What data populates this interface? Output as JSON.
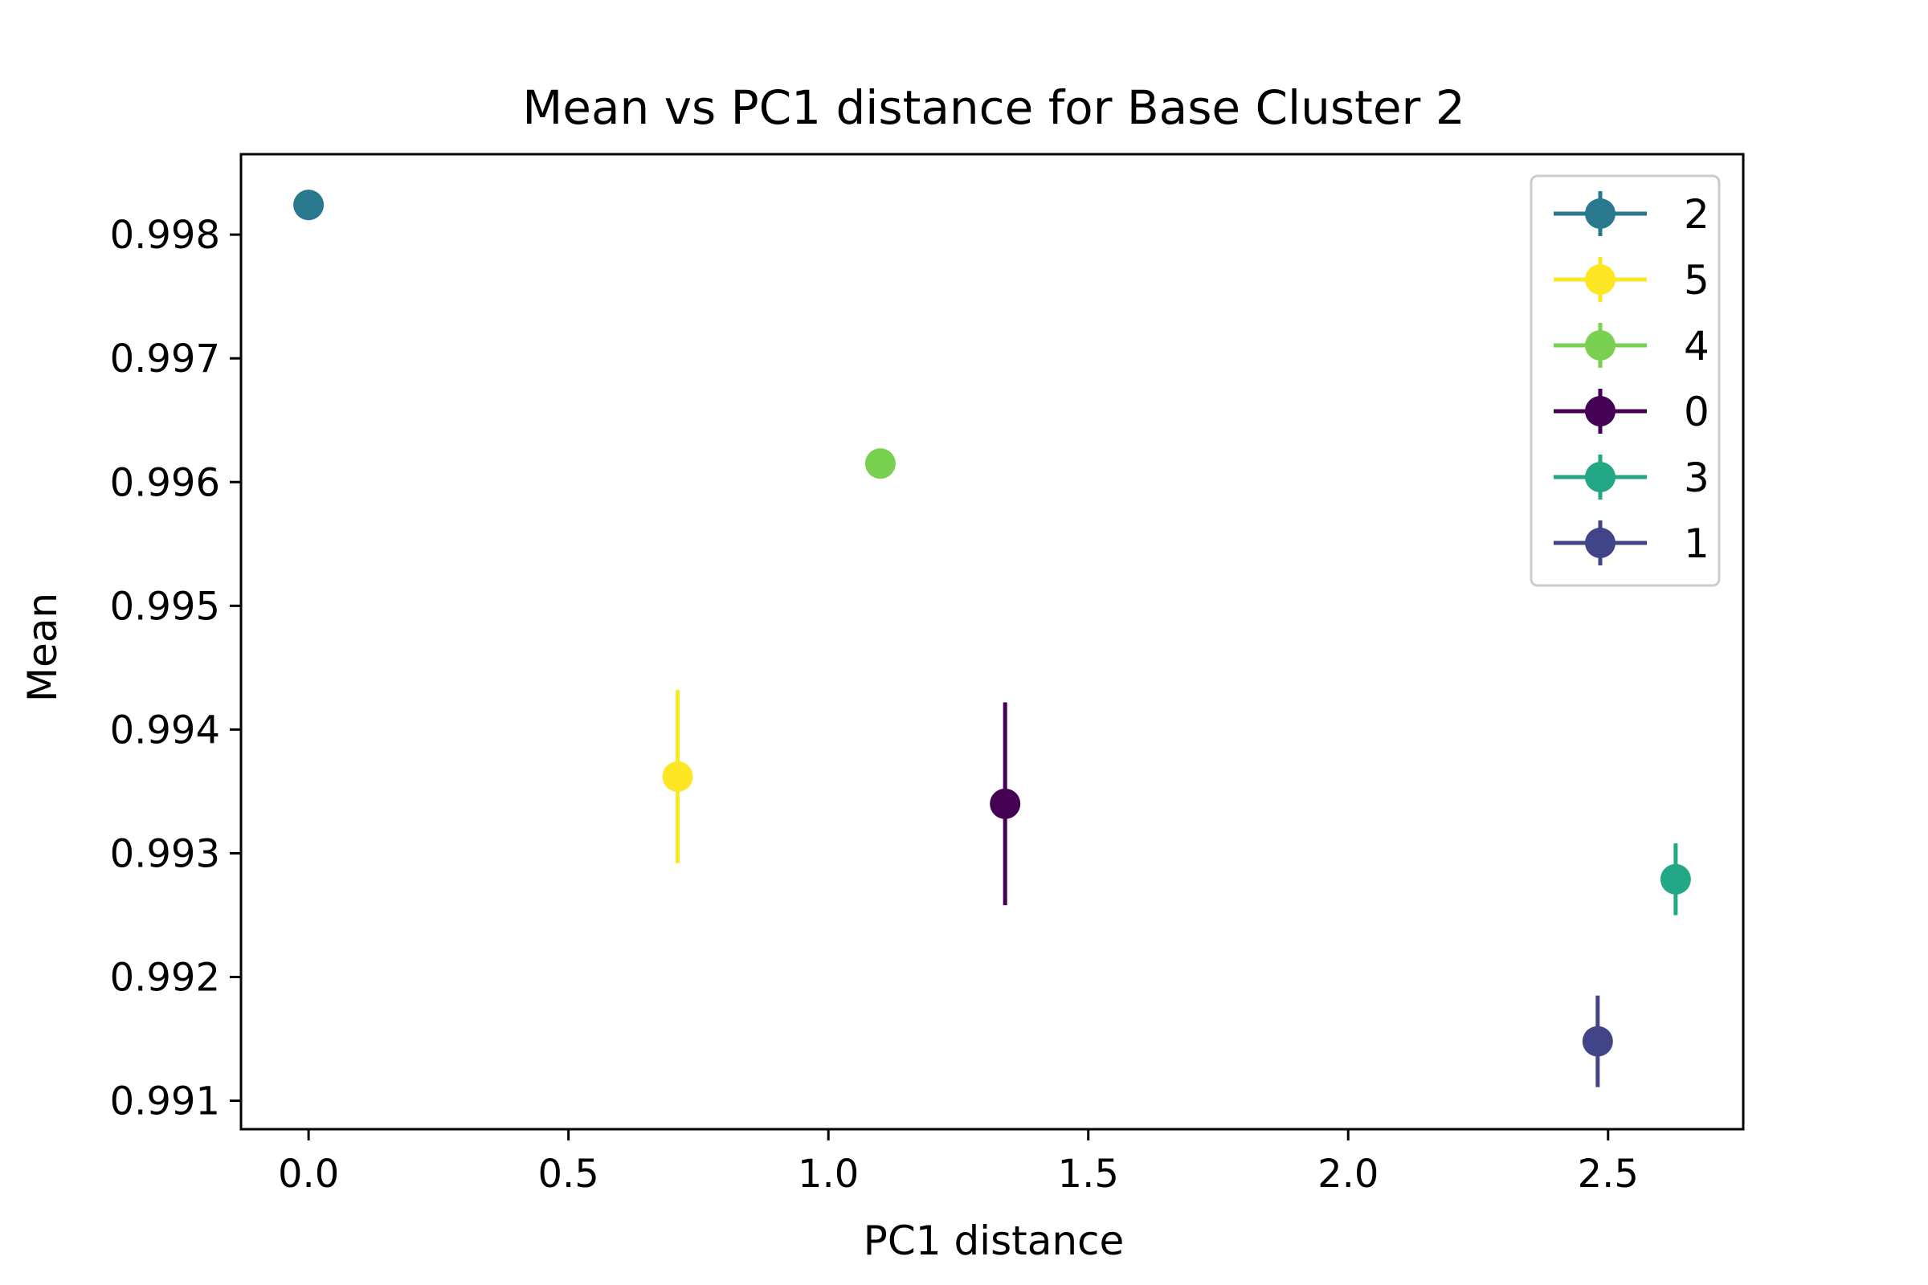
{
  "chart_data": {
    "type": "scatter",
    "title": "Mean vs PC1 distance for Base Cluster 2",
    "xlabel": "PC1 distance",
    "ylabel": "Mean",
    "xlim": [
      -0.13,
      2.76
    ],
    "ylim": [
      0.99077,
      0.99865
    ],
    "xticks": [
      0.0,
      0.5,
      1.0,
      1.5,
      2.0,
      2.5
    ],
    "xtick_labels": [
      "0.0",
      "0.5",
      "1.0",
      "1.5",
      "2.0",
      "2.5"
    ],
    "yticks": [
      0.991,
      0.992,
      0.993,
      0.994,
      0.995,
      0.996,
      0.997,
      0.998
    ],
    "ytick_labels": [
      "0.991",
      "0.992",
      "0.993",
      "0.994",
      "0.995",
      "0.996",
      "0.997",
      "0.998"
    ],
    "grid": false,
    "legend_position": "top-right",
    "series": [
      {
        "name": "2",
        "color": "#2a788e",
        "x": 0.0,
        "y": 0.99824,
        "err": 0.0
      },
      {
        "name": "5",
        "color": "#fde725",
        "x": 0.71,
        "y": 0.99362,
        "err": 0.0007
      },
      {
        "name": "4",
        "color": "#7ad151",
        "x": 1.1,
        "y": 0.99615,
        "err": 0.0
      },
      {
        "name": "0",
        "color": "#440154",
        "x": 1.34,
        "y": 0.9934,
        "err": 0.00082
      },
      {
        "name": "3",
        "color": "#22a884",
        "x": 2.63,
        "y": 0.99279,
        "err": 0.00029
      },
      {
        "name": "1",
        "color": "#414487",
        "x": 2.48,
        "y": 0.99148,
        "err": 0.00037
      }
    ]
  }
}
